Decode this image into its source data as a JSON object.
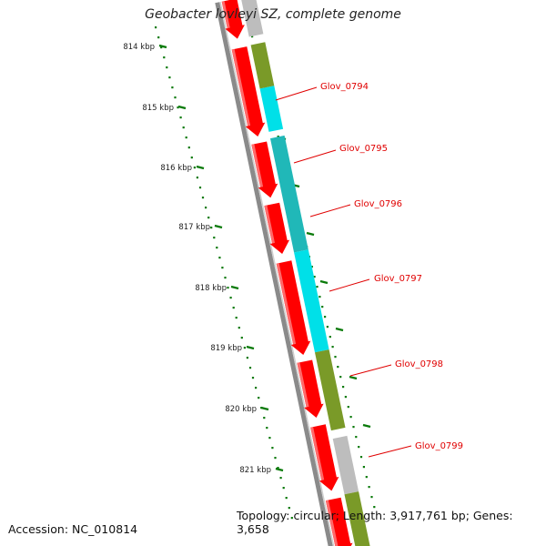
{
  "title": "Geobacter lovleyi SZ, complete genome",
  "footer": {
    "accession": "Accession: NC_010814",
    "topology": "Topology: circular; Length: 3,917,761 bp; Genes: 3,658"
  },
  "ticks": [
    "814 kbp",
    "815 kbp",
    "816 kbp",
    "817 kbp",
    "818 kbp",
    "819 kbp",
    "820 kbp",
    "821 kbp"
  ],
  "gene_labels": [
    "Glov_0794",
    "Glov_0795",
    "Glov_0796",
    "Glov_0797",
    "Glov_0798",
    "Glov_0799"
  ],
  "colors": {
    "forward_cds": "#ff0000",
    "cyan": "#00e0e8",
    "teal": "#20b8b8",
    "olive": "#7a9a28",
    "gray": "#bdbdbd",
    "pink": "#f2a8a8",
    "backbone": "#8a8a8a",
    "label": "#e00000",
    "tick": "#0a7a0a"
  },
  "tracks": {
    "forward": [
      {
        "start": 0.0,
        "end": 0.071,
        "color": "forward_cds"
      },
      {
        "start": 0.088,
        "end": 0.25,
        "color": "forward_cds"
      },
      {
        "start": 0.262,
        "end": 0.362,
        "color": "forward_cds"
      },
      {
        "start": 0.374,
        "end": 0.465,
        "color": "forward_cds"
      },
      {
        "start": 0.48,
        "end": 0.65,
        "color": "forward_cds"
      },
      {
        "start": 0.662,
        "end": 0.765,
        "color": "forward_cds"
      },
      {
        "start": 0.78,
        "end": 0.899,
        "color": "forward_cds"
      },
      {
        "start": 0.914,
        "end": 1.02,
        "color": "forward_cds"
      }
    ],
    "reverse": [
      {
        "start": -0.02,
        "end": 0.072,
        "color": "gray"
      },
      {
        "start": 0.087,
        "end": 0.167,
        "color": "olive"
      },
      {
        "start": 0.167,
        "end": 0.246,
        "color": "cyan"
      },
      {
        "start": 0.258,
        "end": 0.467,
        "color": "teal"
      },
      {
        "start": 0.467,
        "end": 0.65,
        "color": "cyan"
      },
      {
        "start": 0.65,
        "end": 0.793,
        "color": "olive"
      },
      {
        "start": 0.808,
        "end": 0.91,
        "color": "gray"
      },
      {
        "start": 0.91,
        "end": 1.03,
        "color": "olive"
      }
    ]
  }
}
